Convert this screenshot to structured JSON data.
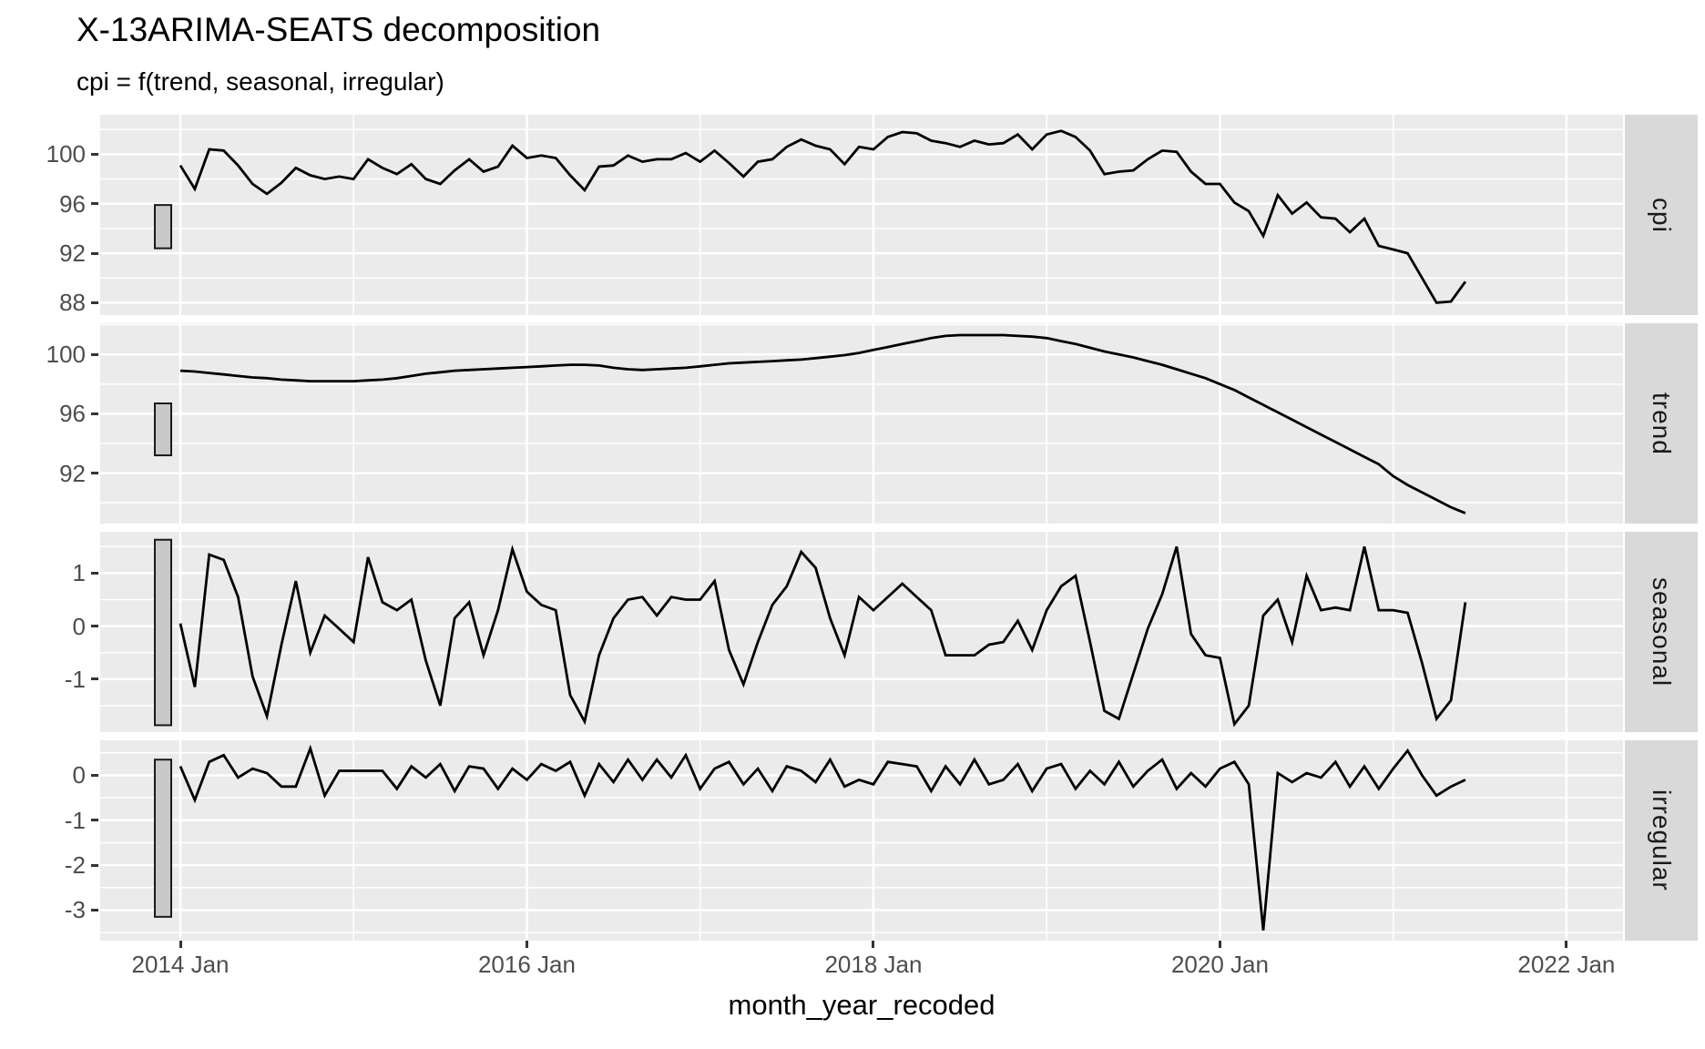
{
  "header": {
    "title": "X-13ARIMA-SEATS decomposition",
    "subtitle": "cpi = f(trend, seasonal, irregular)"
  },
  "chart_data": {
    "type": "line",
    "title": "X-13ARIMA-SEATS decomposition",
    "subtitle": "cpi = f(trend, seasonal, irregular)",
    "xlabel": "month_year_recoded",
    "grid": "on",
    "x_ticks": [
      "2014 Jan",
      "2016 Jan",
      "2018 Jan",
      "2020 Jan",
      "2022 Jan"
    ],
    "x_start": "2014 Jan",
    "x_end": "2021 Jun",
    "frequency": "monthly",
    "colors": {
      "panel_bg": "#EBEBEB",
      "strip_bg": "#D9D9D9",
      "grid": "#FFFFFF",
      "line": "#000000",
      "scale_bar_fill": "#C8C8C8",
      "axis_text": "#4D4D4D"
    },
    "panels": [
      {
        "label": "cpi",
        "ylim": [
          87.0,
          103.2
        ],
        "yticks": [
          88,
          92,
          96,
          100
        ],
        "yticks_minor": [
          90,
          94,
          98,
          102
        ],
        "scale_bar": [
          92.4,
          95.9
        ],
        "values": [
          99.1,
          97.2,
          100.4,
          100.3,
          99.1,
          97.6,
          96.8,
          97.7,
          98.9,
          98.3,
          98.0,
          98.2,
          98.0,
          99.6,
          98.9,
          98.4,
          99.2,
          98.0,
          97.6,
          98.7,
          99.6,
          98.6,
          99.0,
          100.7,
          99.7,
          99.9,
          99.7,
          98.3,
          97.1,
          99.0,
          99.1,
          99.9,
          99.4,
          99.6,
          99.6,
          100.1,
          99.4,
          100.3,
          99.3,
          98.2,
          99.4,
          99.6,
          100.6,
          101.2,
          100.7,
          100.4,
          99.2,
          100.6,
          100.4,
          101.4,
          101.8,
          101.7,
          101.1,
          100.9,
          100.6,
          101.1,
          100.8,
          100.9,
          101.6,
          100.4,
          101.6,
          101.9,
          101.4,
          100.3,
          98.4,
          98.6,
          98.7,
          99.6,
          100.3,
          100.2,
          98.6,
          97.6,
          97.6,
          96.1,
          95.4,
          93.4,
          96.7,
          95.2,
          96.1,
          94.9,
          94.8,
          93.7,
          94.8,
          92.6,
          92.3,
          92.0,
          90.0,
          88.0,
          88.1,
          89.7
        ]
      },
      {
        "label": "trend",
        "ylim": [
          88.6,
          102.1
        ],
        "yticks": [
          92,
          96,
          100
        ],
        "yticks_minor": [
          90,
          94,
          98,
          102
        ],
        "scale_bar": [
          93.2,
          96.7
        ],
        "values": [
          98.9,
          98.85,
          98.75,
          98.65,
          98.55,
          98.45,
          98.4,
          98.3,
          98.25,
          98.2,
          98.2,
          98.2,
          98.2,
          98.25,
          98.3,
          98.4,
          98.55,
          98.7,
          98.8,
          98.9,
          98.95,
          99.0,
          99.05,
          99.1,
          99.15,
          99.2,
          99.25,
          99.3,
          99.3,
          99.25,
          99.1,
          99.0,
          98.95,
          99.0,
          99.05,
          99.1,
          99.2,
          99.3,
          99.4,
          99.45,
          99.5,
          99.55,
          99.6,
          99.65,
          99.75,
          99.85,
          99.95,
          100.1,
          100.3,
          100.5,
          100.7,
          100.9,
          101.1,
          101.25,
          101.3,
          101.3,
          101.3,
          101.3,
          101.25,
          101.2,
          101.1,
          100.9,
          100.7,
          100.45,
          100.2,
          100.0,
          99.8,
          99.55,
          99.3,
          99.0,
          98.7,
          98.4,
          98.0,
          97.6,
          97.1,
          96.6,
          96.1,
          95.6,
          95.1,
          94.6,
          94.1,
          93.6,
          93.1,
          92.6,
          91.8,
          91.2,
          90.7,
          90.2,
          89.7,
          89.3
        ]
      },
      {
        "label": "seasonal",
        "ylim": [
          -2.0,
          1.78
        ],
        "yticks": [
          -1,
          0,
          1
        ],
        "yticks_minor": [
          -1.5,
          -0.5,
          0.5,
          1.5
        ],
        "scale_bar": [
          -1.87,
          1.63
        ],
        "values": [
          0.05,
          -1.15,
          1.35,
          1.25,
          0.55,
          -0.95,
          -1.7,
          -0.35,
          0.85,
          -0.5,
          0.2,
          -0.05,
          -0.3,
          1.3,
          0.45,
          0.3,
          0.5,
          -0.65,
          -1.5,
          0.15,
          0.45,
          -0.55,
          0.3,
          1.45,
          0.65,
          0.4,
          0.3,
          -1.3,
          -1.8,
          -0.55,
          0.15,
          0.5,
          0.55,
          0.2,
          0.55,
          0.5,
          0.5,
          0.85,
          -0.45,
          -1.1,
          -0.3,
          0.4,
          0.75,
          1.4,
          1.1,
          0.15,
          -0.55,
          0.55,
          0.3,
          0.55,
          0.8,
          0.55,
          0.3,
          -0.55,
          -0.55,
          -0.55,
          -0.35,
          -0.3,
          0.1,
          -0.45,
          0.3,
          0.75,
          0.95,
          -0.3,
          -1.6,
          -1.75,
          -0.9,
          -0.05,
          0.6,
          1.5,
          -0.15,
          -0.55,
          -0.6,
          -1.85,
          -1.5,
          0.2,
          0.5,
          -0.3,
          0.95,
          0.3,
          0.35,
          0.3,
          1.5,
          0.3,
          0.3,
          0.25,
          -0.7,
          -1.75,
          -1.4,
          0.45
        ]
      },
      {
        "label": "irregular",
        "ylim": [
          -3.68,
          0.78
        ],
        "yticks": [
          -3,
          -2,
          -1,
          0
        ],
        "yticks_minor": [
          -3.5,
          -2.5,
          -1.5,
          -0.5,
          0.5
        ],
        "scale_bar": [
          -3.15,
          0.35
        ],
        "values": [
          0.2,
          -0.55,
          0.3,
          0.45,
          -0.05,
          0.15,
          0.05,
          -0.25,
          -0.25,
          0.6,
          -0.45,
          0.1,
          0.1,
          0.1,
          0.1,
          -0.3,
          0.2,
          -0.05,
          0.25,
          -0.35,
          0.2,
          0.15,
          -0.3,
          0.15,
          -0.1,
          0.25,
          0.1,
          0.3,
          -0.45,
          0.25,
          -0.15,
          0.35,
          -0.1,
          0.35,
          -0.05,
          0.45,
          -0.3,
          0.15,
          0.3,
          -0.2,
          0.15,
          -0.35,
          0.2,
          0.1,
          -0.15,
          0.35,
          -0.25,
          -0.1,
          -0.2,
          0.3,
          0.25,
          0.2,
          -0.35,
          0.2,
          -0.2,
          0.35,
          -0.2,
          -0.1,
          0.25,
          -0.35,
          0.15,
          0.25,
          -0.3,
          0.1,
          -0.2,
          0.3,
          -0.25,
          0.1,
          0.35,
          -0.3,
          0.05,
          -0.25,
          0.15,
          0.3,
          -0.2,
          -3.45,
          0.05,
          -0.15,
          0.05,
          -0.05,
          0.3,
          -0.25,
          0.2,
          -0.3,
          0.15,
          0.55,
          0.0,
          -0.45,
          -0.25,
          -0.1
        ]
      }
    ]
  }
}
